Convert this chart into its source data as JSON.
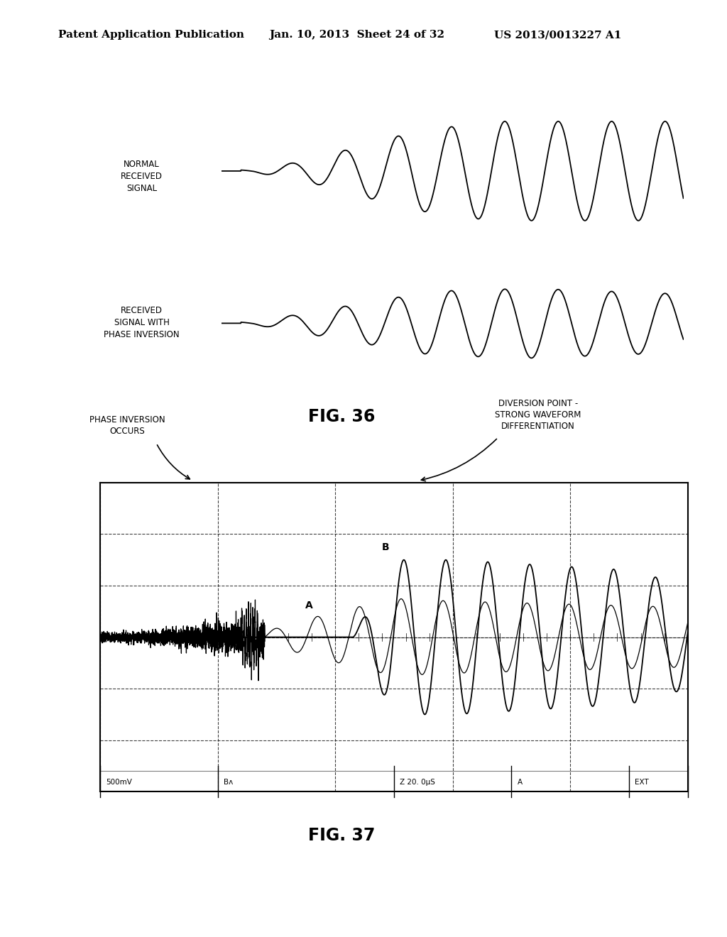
{
  "background_color": "#ffffff",
  "header_left": "Patent Application Publication",
  "header_mid": "Jan. 10, 2013  Sheet 24 of 32",
  "header_right": "US 2013/0013227 A1",
  "header_fontsize": 11,
  "fig36_label": "FIG. 36",
  "fig37_label": "FIG. 37",
  "label1": "NORMAL\nRECEIVED\nSIGNAL",
  "label2": "RECEIVED\nSIGNAL WITH\nPHASE INVERSION",
  "annotation1": "PHASE INVERSION\nOCCURS",
  "annotation2": "DIVERSION POINT -\nSTRONG WAVEFORM\nDIFFERENTIATION",
  "osc_label_A": "A",
  "osc_label_B": "B",
  "osc_bottom_500mV": "500mV",
  "osc_bottom_Bw": "Bᴧ",
  "osc_bottom_Z": "Z 20. 0μS",
  "osc_bottom_A": "A",
  "osc_bottom_EXT": "EXT"
}
